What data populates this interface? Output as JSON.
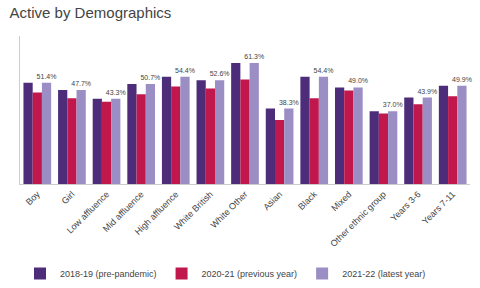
{
  "chart_data": {
    "type": "bar",
    "title": "Active by Demographics",
    "categories": [
      "Boy",
      "Girl",
      "Low affluence",
      "Mid affluence",
      "High affluence",
      "White British",
      "White Other",
      "Asian",
      "Black",
      "Mixed",
      "Other ethnic group",
      "Years 3-6",
      "Years 7-11"
    ],
    "series": [
      {
        "name": "2018-19 (pre-pandemic)",
        "color": "#4d2d7a",
        "values": [
          51.4,
          47.7,
          43.3,
          50.7,
          54.4,
          52.6,
          61.3,
          38.3,
          54.4,
          49.0,
          37.0,
          43.9,
          49.9
        ]
      },
      {
        "name": "2020-21 (previous year)",
        "color": "#c0174d",
        "values": [
          46.5,
          43.5,
          41.8,
          45.5,
          49.5,
          48.5,
          53.0,
          32.5,
          43.5,
          47.5,
          35.8,
          40.5,
          44.5
        ]
      },
      {
        "name": "2021-22 (latest year)",
        "color": "#9b8ec4",
        "values": [
          51.4,
          47.7,
          43.3,
          50.7,
          54.4,
          52.6,
          61.3,
          38.3,
          54.4,
          49.0,
          37.0,
          43.9,
          49.9
        ],
        "data_labels": true,
        "value_labels": [
          "51.4%",
          "47.7%",
          "43.3%",
          "50.7%",
          "54.4%",
          "52.6%",
          "61.3%",
          "38.3%",
          "54.4%",
          "49.0%",
          "37.0%",
          "43.9%",
          "49.9%"
        ]
      }
    ],
    "ylim": [
      0,
      75
    ],
    "grid": false,
    "legend": "bottom",
    "tick_labels": "x"
  }
}
